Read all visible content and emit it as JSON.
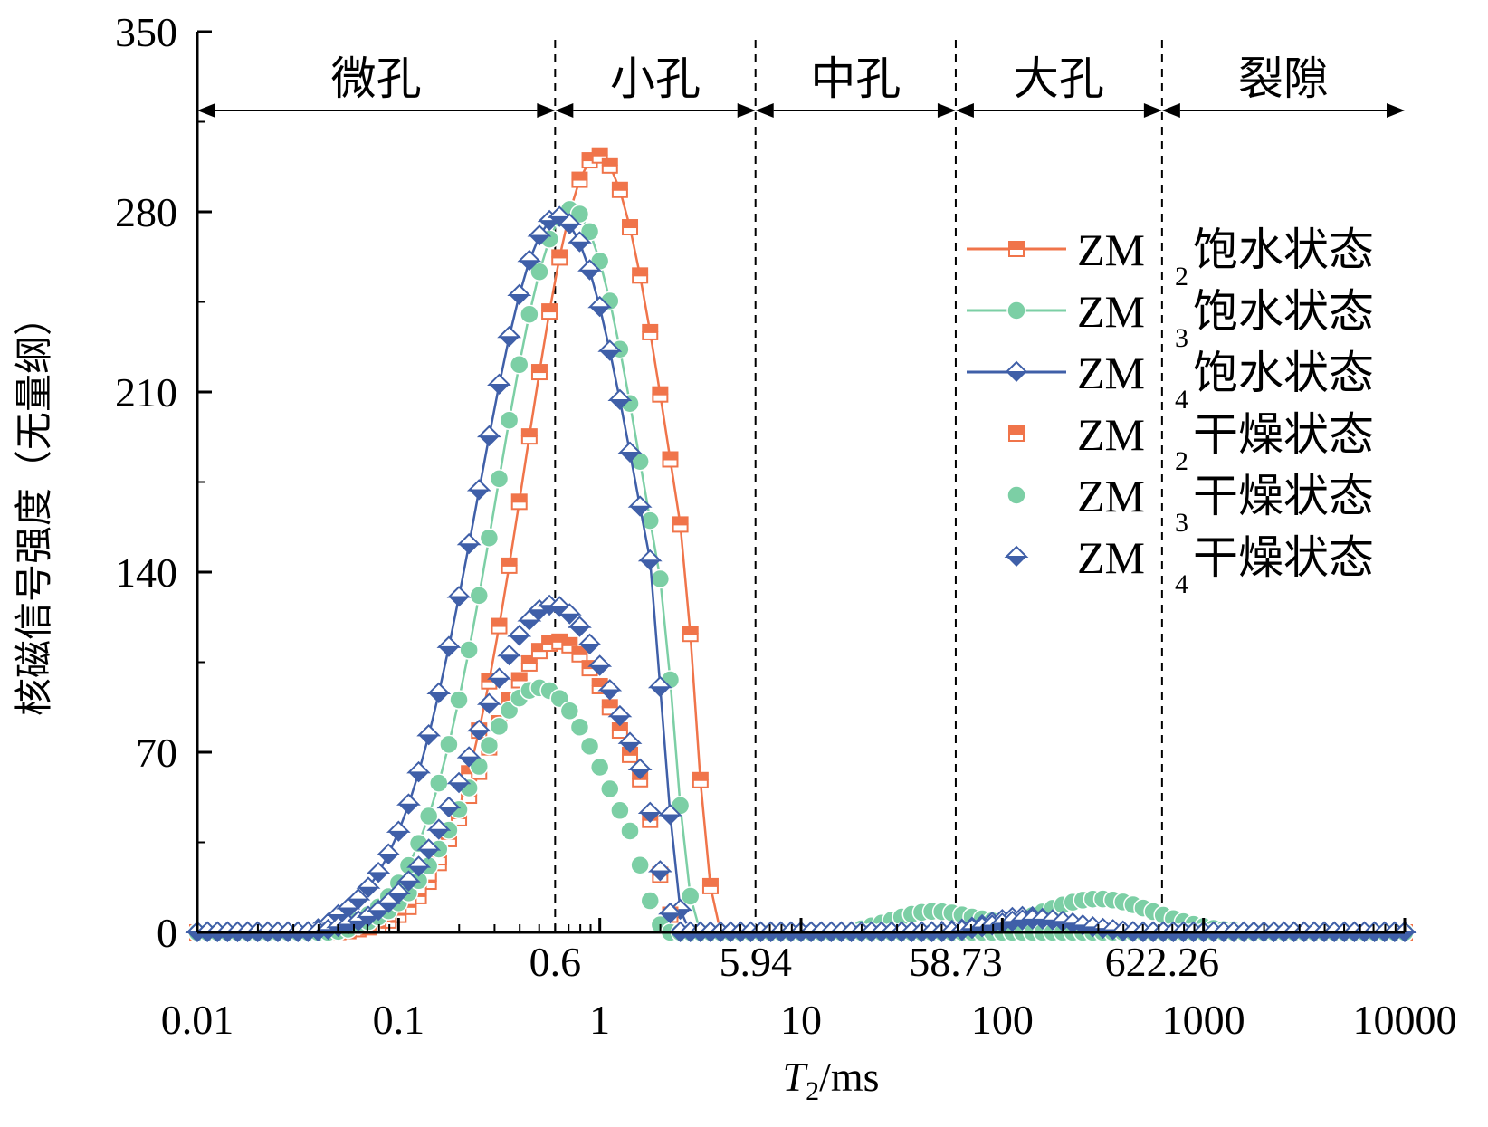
{
  "chart_data": {
    "type": "line",
    "x_scale": "log",
    "xlim": [
      0.01,
      10000
    ],
    "ylim": [
      0,
      350
    ],
    "xlabel": {
      "italic": "T",
      "subscript": "2",
      "rest": "/ms"
    },
    "ylabel": "核磁信号强度（无量纲）",
    "x_ticks": [
      {
        "value": 0.01,
        "label": "0.01"
      },
      {
        "value": 0.1,
        "label": "0.1"
      },
      {
        "value": 1,
        "label": "1"
      },
      {
        "value": 10,
        "label": "10"
      },
      {
        "value": 100,
        "label": "100"
      },
      {
        "value": 1000,
        "label": "1000"
      },
      {
        "value": 10000,
        "label": "10000"
      }
    ],
    "y_ticks": [
      {
        "value": 0,
        "label": "0"
      },
      {
        "value": 70,
        "label": "70"
      },
      {
        "value": 140,
        "label": "140"
      },
      {
        "value": 210,
        "label": "210"
      },
      {
        "value": 280,
        "label": "280"
      },
      {
        "value": 350,
        "label": "350"
      }
    ],
    "boundaries": [
      {
        "value": 0.6,
        "label": "0.6"
      },
      {
        "value": 5.94,
        "label": "5.94"
      },
      {
        "value": 58.73,
        "label": "58.73"
      },
      {
        "value": 622.26,
        "label": "622.26"
      }
    ],
    "pore_regions": [
      {
        "label": "微孔",
        "from": 0.01,
        "to": 0.6
      },
      {
        "label": "小孔",
        "from": 0.6,
        "to": 5.94
      },
      {
        "label": "中孔",
        "from": 5.94,
        "to": 58.73
      },
      {
        "label": "大孔",
        "from": 58.73,
        "to": 622.26
      },
      {
        "label": "裂隙",
        "from": 622.26,
        "to": 10000
      }
    ],
    "legend_position": "right",
    "series": [
      {
        "name": "ZM2饱水状态",
        "name_main": "ZM",
        "name_sub": "2",
        "name_state": "饱水状态",
        "color": "#F0744A",
        "marker": "square",
        "line": true,
        "peaks": [
          {
            "center": 0.98,
            "width": 0.36,
            "height": 302,
            "start": 0.045,
            "end": 3.8
          }
        ]
      },
      {
        "name": "ZM3饱水状态",
        "name_main": "ZM",
        "name_sub": "3",
        "name_state": "饱水状态",
        "color": "#7CCFA5",
        "marker": "circle",
        "line": true,
        "peaks": [
          {
            "center": 0.72,
            "width": 0.37,
            "height": 281,
            "start": 0.04,
            "end": 3.0
          },
          {
            "center": 300,
            "width": 0.28,
            "height": 13,
            "start": 30,
            "end": 2000
          },
          {
            "center": 45,
            "width": 0.2,
            "height": 8,
            "start": 15,
            "end": 120
          }
        ]
      },
      {
        "name": "ZM4饱水状态",
        "name_main": "ZM",
        "name_sub": "4",
        "name_state": "饱水状态",
        "color": "#3F5FA8",
        "marker": "diamond",
        "line": true,
        "peaks": [
          {
            "center": 0.62,
            "width": 0.4,
            "height": 278,
            "start": 0.035,
            "end": 2.6
          },
          {
            "center": 130,
            "width": 0.17,
            "height": 6,
            "start": 40,
            "end": 400
          }
        ]
      },
      {
        "name": "ZM2干燥状态",
        "name_main": "ZM",
        "name_sub": "2",
        "name_state": "干燥状态",
        "color": "#F0744A",
        "marker": "square",
        "line": false,
        "peaks": [
          {
            "center": 0.62,
            "width": 0.36,
            "height": 113,
            "start": 0.045,
            "end": 2.4
          }
        ]
      },
      {
        "name": "ZM3干燥状态",
        "name_main": "ZM",
        "name_sub": "3",
        "name_state": "干燥状态",
        "color": "#7CCFA5",
        "marker": "circle",
        "line": false,
        "peaks": [
          {
            "center": 0.5,
            "width": 0.34,
            "height": 95,
            "start": 0.045,
            "end": 2.1
          }
        ]
      },
      {
        "name": "ZM4干燥状态",
        "name_main": "ZM",
        "name_sub": "4",
        "name_state": "干燥状态",
        "color": "#3F5FA8",
        "marker": "diamond",
        "line": false,
        "peaks": [
          {
            "center": 0.58,
            "width": 0.37,
            "height": 127,
            "start": 0.035,
            "end": 2.4
          },
          {
            "center": 150,
            "width": 0.2,
            "height": 5,
            "start": 50,
            "end": 500
          }
        ]
      }
    ]
  }
}
